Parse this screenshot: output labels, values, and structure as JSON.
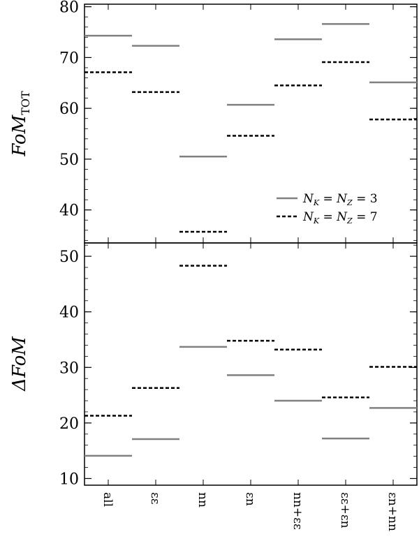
{
  "chart_data": [
    {
      "type": "scatter",
      "panel": "top",
      "categories": [
        "all",
        "εε",
        "nn",
        "εn",
        "nn+εε",
        "εε+εn",
        "εn+nn"
      ],
      "series": [
        {
          "name": "N_K=N_Z=3",
          "legend": "NK = NZ = 3",
          "style": "solid",
          "color": "#808080",
          "values": [
            74.3,
            72.3,
            50.5,
            60.7,
            73.6,
            76.6,
            65.1
          ]
        },
        {
          "name": "N_K=N_Z=7",
          "legend": "NK = NZ = 7",
          "style": "dashed",
          "color": "#000000",
          "values": [
            67.1,
            63.2,
            35.7,
            54.6,
            64.5,
            69.1,
            57.8
          ]
        }
      ],
      "ylabel": "FoM",
      "ylabel_sub": "TOT",
      "ylim": [
        33.5,
        80.5
      ],
      "yticks": [
        "40",
        "50",
        "60",
        "70",
        "80"
      ],
      "legend_position": "lower-right"
    },
    {
      "type": "scatter",
      "panel": "bottom",
      "categories": [
        "all",
        "εε",
        "nn",
        "εn",
        "nn+εε",
        "εε+εn",
        "εn+nn"
      ],
      "series": [
        {
          "name": "N_K=N_Z=3",
          "style": "solid",
          "color": "#808080",
          "values": [
            14.1,
            17.1,
            33.7,
            28.6,
            24.0,
            17.2,
            22.7
          ]
        },
        {
          "name": "N_K=N_Z=7",
          "style": "dashed",
          "color": "#000000",
          "values": [
            21.3,
            26.3,
            48.3,
            34.8,
            33.2,
            24.6,
            30.1
          ]
        }
      ],
      "ylabel": "ΔFoM",
      "ylim": [
        8.8,
        52.4
      ],
      "yticks": [
        "10",
        "20",
        "30",
        "40",
        "50"
      ]
    }
  ]
}
